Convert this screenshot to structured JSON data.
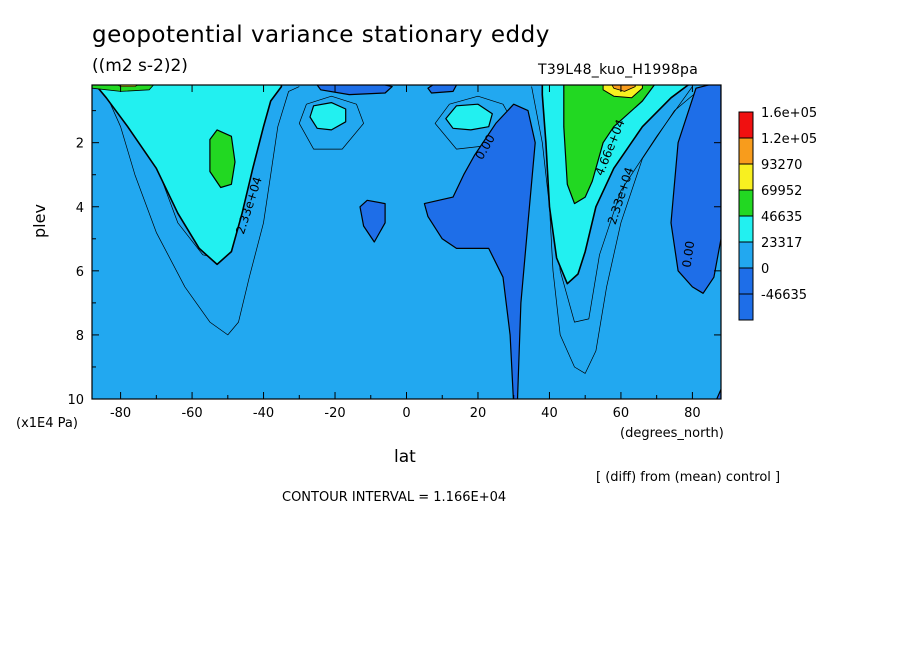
{
  "title": "geopotential variance stationary eddy",
  "units": "((m2 s-2)2)",
  "run_label": "T39L48_kuo_H1998pa",
  "footer": {
    "diff_note": "[ (diff) from (mean) control ]",
    "contour_interval": "CONTOUR INTERVAL = 1.166E+04"
  },
  "chart_data": {
    "type": "heatmap",
    "xlabel": "lat",
    "x_unit": "(degrees_north)",
    "ylabel": "plev",
    "y_unit": "(x1E4 Pa)",
    "xlim": [
      -88,
      88
    ],
    "ylim": [
      10,
      0.2
    ],
    "y_inverted": true,
    "x_ticks": [
      -80,
      -60,
      -40,
      -20,
      0,
      20,
      40,
      60,
      80
    ],
    "y_ticks": [
      2,
      4,
      6,
      8,
      10
    ],
    "legend_levels": [
      "1.6e+05",
      "1.2e+05",
      "93270",
      "69952",
      "46635",
      "23317",
      "0",
      "-46635"
    ],
    "legend_colors": [
      "#f01010",
      "#f89c1c",
      "#f8f020",
      "#22d822",
      "#22f0f0",
      "#22a8f0",
      "#1e6ee8",
      "#1e6ee8"
    ],
    "contour_labels": [
      {
        "text": "2.33e+04",
        "lat": -43,
        "plev": 4.0
      },
      {
        "text": "0.00",
        "lat": 23,
        "plev": 2.2
      },
      {
        "text": "4.66e+04",
        "lat": 58,
        "plev": 2.2
      },
      {
        "text": "2.33e+04",
        "lat": 61,
        "plev": 3.7
      },
      {
        "text": "0.00",
        "lat": 80,
        "plev": 5.5
      }
    ],
    "grid": false,
    "legend_position": "right"
  }
}
